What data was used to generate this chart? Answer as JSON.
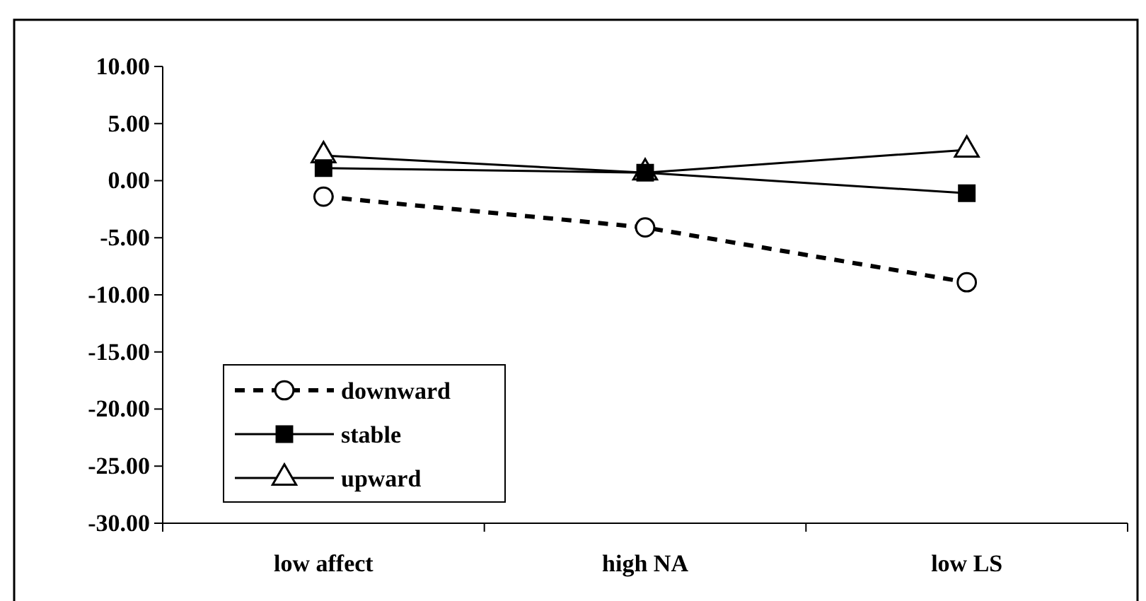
{
  "chart_data": {
    "type": "line",
    "categories": [
      "low affect",
      "high NA",
      "low LS"
    ],
    "series": [
      {
        "name": "downward",
        "color": "#000000",
        "values": [
          -1.4,
          -4.1,
          -8.9
        ],
        "marker": "circle",
        "line_style": "dashed"
      },
      {
        "name": "stable",
        "color": "#000000",
        "values": [
          1.1,
          0.7,
          -1.1
        ],
        "marker": "square",
        "line_style": "solid"
      },
      {
        "name": "upward",
        "color": "#000000",
        "values": [
          2.2,
          0.7,
          2.7
        ],
        "marker": "triangle",
        "line_style": "solid"
      }
    ],
    "ylim": [
      -30,
      10
    ],
    "yticks": [
      {
        "value": -30,
        "label": "-30.00"
      },
      {
        "value": -25,
        "label": "-25.00"
      },
      {
        "value": -20,
        "label": "-20.00"
      },
      {
        "value": -15,
        "label": "-15.00"
      },
      {
        "value": -10,
        "label": "-10.00"
      },
      {
        "value": -5,
        "label": "-5.00"
      },
      {
        "value": 0,
        "label": "0.00"
      },
      {
        "value": 5,
        "label": "5.00"
      },
      {
        "value": 10,
        "label": "10.00"
      }
    ],
    "grid": false,
    "legend": "bottom left"
  }
}
